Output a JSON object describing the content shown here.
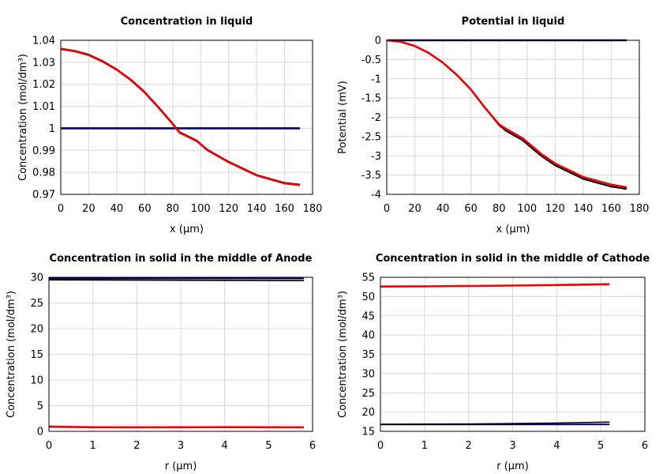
{
  "chart_data": [
    {
      "type": "line",
      "title": "Concentration in liquid",
      "xlabel": "x (µm)",
      "ylabel": "Concentration (mol/dm³)",
      "xlim": [
        0,
        180
      ],
      "ylim": [
        0.97,
        1.04
      ],
      "xticks": [
        0,
        20,
        40,
        60,
        80,
        100,
        120,
        140,
        160,
        180
      ],
      "yticks": [
        0.97,
        0.98,
        0.99,
        1,
        1.01,
        1.02,
        1.03,
        1.04
      ],
      "xtick_labels": [
        "0",
        "20",
        "40",
        "60",
        "80",
        "100",
        "120",
        "140",
        "160",
        "180"
      ],
      "ytick_labels": [
        "0.97",
        "0.98",
        "0.99",
        "1",
        "1.01",
        "1.02",
        "1.03",
        "1.04"
      ],
      "grid": true,
      "series": [
        {
          "color": "#000066",
          "width": 2.6,
          "x": [
            0,
            171
          ],
          "y": [
            1.0,
            1.0
          ]
        },
        {
          "color": "#000000",
          "width": 2.2,
          "x": [
            0,
            10,
            20,
            30,
            40,
            50,
            60,
            70,
            80,
            85,
            97,
            105,
            120,
            140,
            160,
            171
          ],
          "y": [
            1.0362,
            1.0352,
            1.0335,
            1.0305,
            1.0268,
            1.0222,
            1.0165,
            1.0095,
            1.0022,
            0.9982,
            0.9945,
            0.9902,
            0.9848,
            0.9788,
            0.9752,
            0.9744
          ]
        },
        {
          "color": "#ee0000",
          "width": 2.6,
          "x": [
            0,
            10,
            20,
            30,
            40,
            50,
            60,
            70,
            80,
            85,
            97,
            105,
            120,
            140,
            160,
            171
          ],
          "y": [
            1.036,
            1.035,
            1.0333,
            1.0303,
            1.0266,
            1.022,
            1.0163,
            1.0093,
            1.002,
            0.998,
            0.9943,
            0.99,
            0.9846,
            0.9786,
            0.975,
            0.9742
          ]
        }
      ]
    },
    {
      "type": "line",
      "title": "Potential in liquid",
      "xlabel": "x (µm)",
      "ylabel": "Potential (mV)",
      "xlim": [
        0,
        180
      ],
      "ylim": [
        -4,
        0
      ],
      "xticks": [
        0,
        20,
        40,
        60,
        80,
        100,
        120,
        140,
        160,
        180
      ],
      "yticks": [
        -4,
        -3.5,
        -3,
        -2.5,
        -2,
        -1.5,
        -1,
        -0.5,
        0
      ],
      "xtick_labels": [
        "0",
        "20",
        "40",
        "60",
        "80",
        "100",
        "120",
        "140",
        "160",
        "180"
      ],
      "ytick_labels": [
        "-4",
        "-3.5",
        "-3",
        "-2.5",
        "-2",
        "-1.5",
        "-1",
        "-0.5",
        "0"
      ],
      "grid": true,
      "series": [
        {
          "color": "#000066",
          "width": 2.6,
          "x": [
            0,
            171
          ],
          "y": [
            0,
            0
          ]
        },
        {
          "color": "#000000",
          "width": 2.0,
          "x": [
            0,
            10,
            20,
            30,
            40,
            50,
            60,
            70,
            80,
            85,
            97,
            110,
            120,
            140,
            160,
            171
          ],
          "y": [
            0,
            -0.04,
            -0.15,
            -0.33,
            -0.58,
            -0.9,
            -1.28,
            -1.75,
            -2.2,
            -2.35,
            -2.6,
            -3.0,
            -3.25,
            -3.6,
            -3.8,
            -3.86
          ]
        },
        {
          "color": "#ee0000",
          "width": 2.6,
          "x": [
            0,
            10,
            20,
            30,
            40,
            50,
            60,
            70,
            80,
            85,
            97,
            110,
            120,
            140,
            160,
            171
          ],
          "y": [
            0,
            -0.04,
            -0.15,
            -0.33,
            -0.58,
            -0.9,
            -1.28,
            -1.75,
            -2.18,
            -2.3,
            -2.55,
            -2.95,
            -3.2,
            -3.55,
            -3.75,
            -3.82
          ]
        }
      ]
    },
    {
      "type": "line",
      "title": "Concentration in solid in the middle of Anode",
      "xlabel": "r (µm)",
      "ylabel": "Concentration (mol/dm³)",
      "xlim": [
        0,
        6
      ],
      "ylim": [
        0,
        30
      ],
      "xticks": [
        0,
        1,
        2,
        3,
        4,
        5,
        6
      ],
      "yticks": [
        0,
        5,
        10,
        15,
        20,
        25,
        30
      ],
      "xtick_labels": [
        "0",
        "1",
        "2",
        "3",
        "4",
        "5",
        "6"
      ],
      "ytick_labels": [
        "0",
        "5",
        "10",
        "15",
        "20",
        "25",
        "30"
      ],
      "grid": true,
      "series": [
        {
          "color": "#000066",
          "width": 2.4,
          "x": [
            0,
            5.8
          ],
          "y": [
            29.8,
            29.8
          ]
        },
        {
          "color": "#000000",
          "width": 1.6,
          "x": [
            0,
            2,
            4,
            5.8
          ],
          "y": [
            29.5,
            29.45,
            29.4,
            29.35
          ]
        },
        {
          "color": "#ee0000",
          "width": 2.6,
          "x": [
            0,
            1,
            2,
            3,
            4,
            5,
            5.8
          ],
          "y": [
            0.9,
            0.8,
            0.78,
            0.8,
            0.82,
            0.8,
            0.78
          ]
        }
      ]
    },
    {
      "type": "line",
      "title": "Concentration in solid in the middle of Cathode",
      "xlabel": "r (µm)",
      "ylabel": "Concentration (mol/dm³)",
      "xlim": [
        0,
        6
      ],
      "ylim": [
        15,
        55
      ],
      "xticks": [
        0,
        1,
        2,
        3,
        4,
        5,
        6
      ],
      "yticks": [
        15,
        20,
        25,
        30,
        35,
        40,
        45,
        50,
        55
      ],
      "xtick_labels": [
        "0",
        "1",
        "2",
        "3",
        "4",
        "5",
        "6"
      ],
      "ytick_labels": [
        "15",
        "20",
        "25",
        "30",
        "35",
        "40",
        "45",
        "50",
        "55"
      ],
      "grid": true,
      "series": [
        {
          "color": "#000066",
          "width": 2.0,
          "x": [
            0,
            5.2
          ],
          "y": [
            16.8,
            16.8
          ]
        },
        {
          "color": "#000000",
          "width": 1.6,
          "x": [
            0,
            2,
            4,
            5.2
          ],
          "y": [
            16.8,
            16.9,
            17.15,
            17.4
          ]
        },
        {
          "color": "#ee0000",
          "width": 2.6,
          "x": [
            0,
            1,
            2,
            3,
            4,
            5.2
          ],
          "y": [
            52.6,
            52.65,
            52.75,
            52.85,
            53.0,
            53.2
          ]
        }
      ]
    }
  ]
}
